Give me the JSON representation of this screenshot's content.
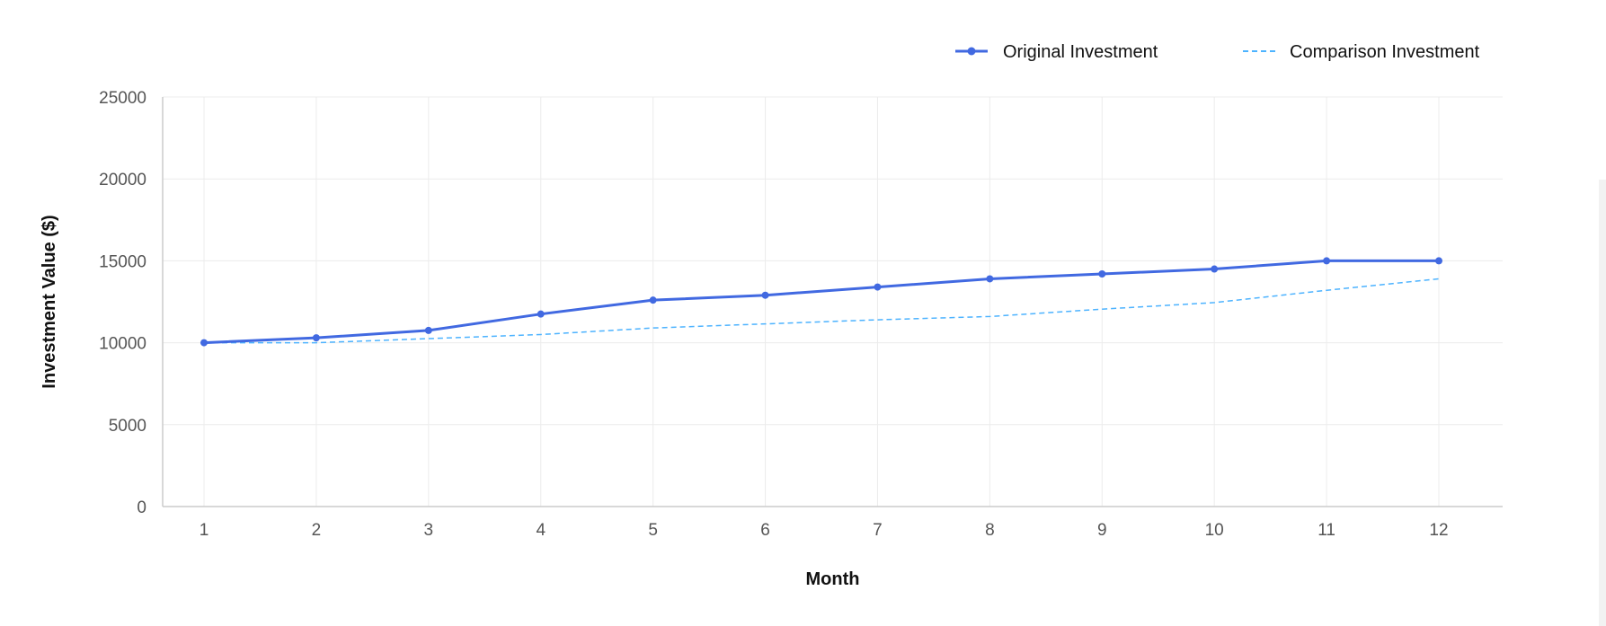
{
  "chart_data": {
    "type": "line",
    "xlabel": "Month",
    "ylabel": "Investment Value ($)",
    "x": [
      1,
      2,
      3,
      4,
      5,
      6,
      7,
      8,
      9,
      10,
      11,
      12
    ],
    "x_tick_labels": [
      "1",
      "2",
      "3",
      "4",
      "5",
      "6",
      "7",
      "8",
      "9",
      "10",
      "11",
      "12"
    ],
    "ylim": [
      0,
      25000
    ],
    "y_ticks": [
      0,
      5000,
      10000,
      15000,
      20000,
      25000
    ],
    "y_tick_labels": [
      "0",
      "5000",
      "10000",
      "15000",
      "20000",
      "25000"
    ],
    "grid": true,
    "legend_position": "top-right",
    "series": [
      {
        "name": "Original Investment",
        "color": "#4169e1",
        "style": "solid-with-markers",
        "values": [
          10000,
          10300,
          10750,
          11750,
          12600,
          12900,
          13400,
          13900,
          14200,
          14500,
          15000,
          15000
        ]
      },
      {
        "name": "Comparison Investment",
        "color": "#4db3ff",
        "style": "dashed",
        "values": [
          10000,
          10000,
          10250,
          10500,
          10900,
          11150,
          11400,
          11600,
          12050,
          12450,
          13200,
          13900
        ]
      }
    ]
  }
}
